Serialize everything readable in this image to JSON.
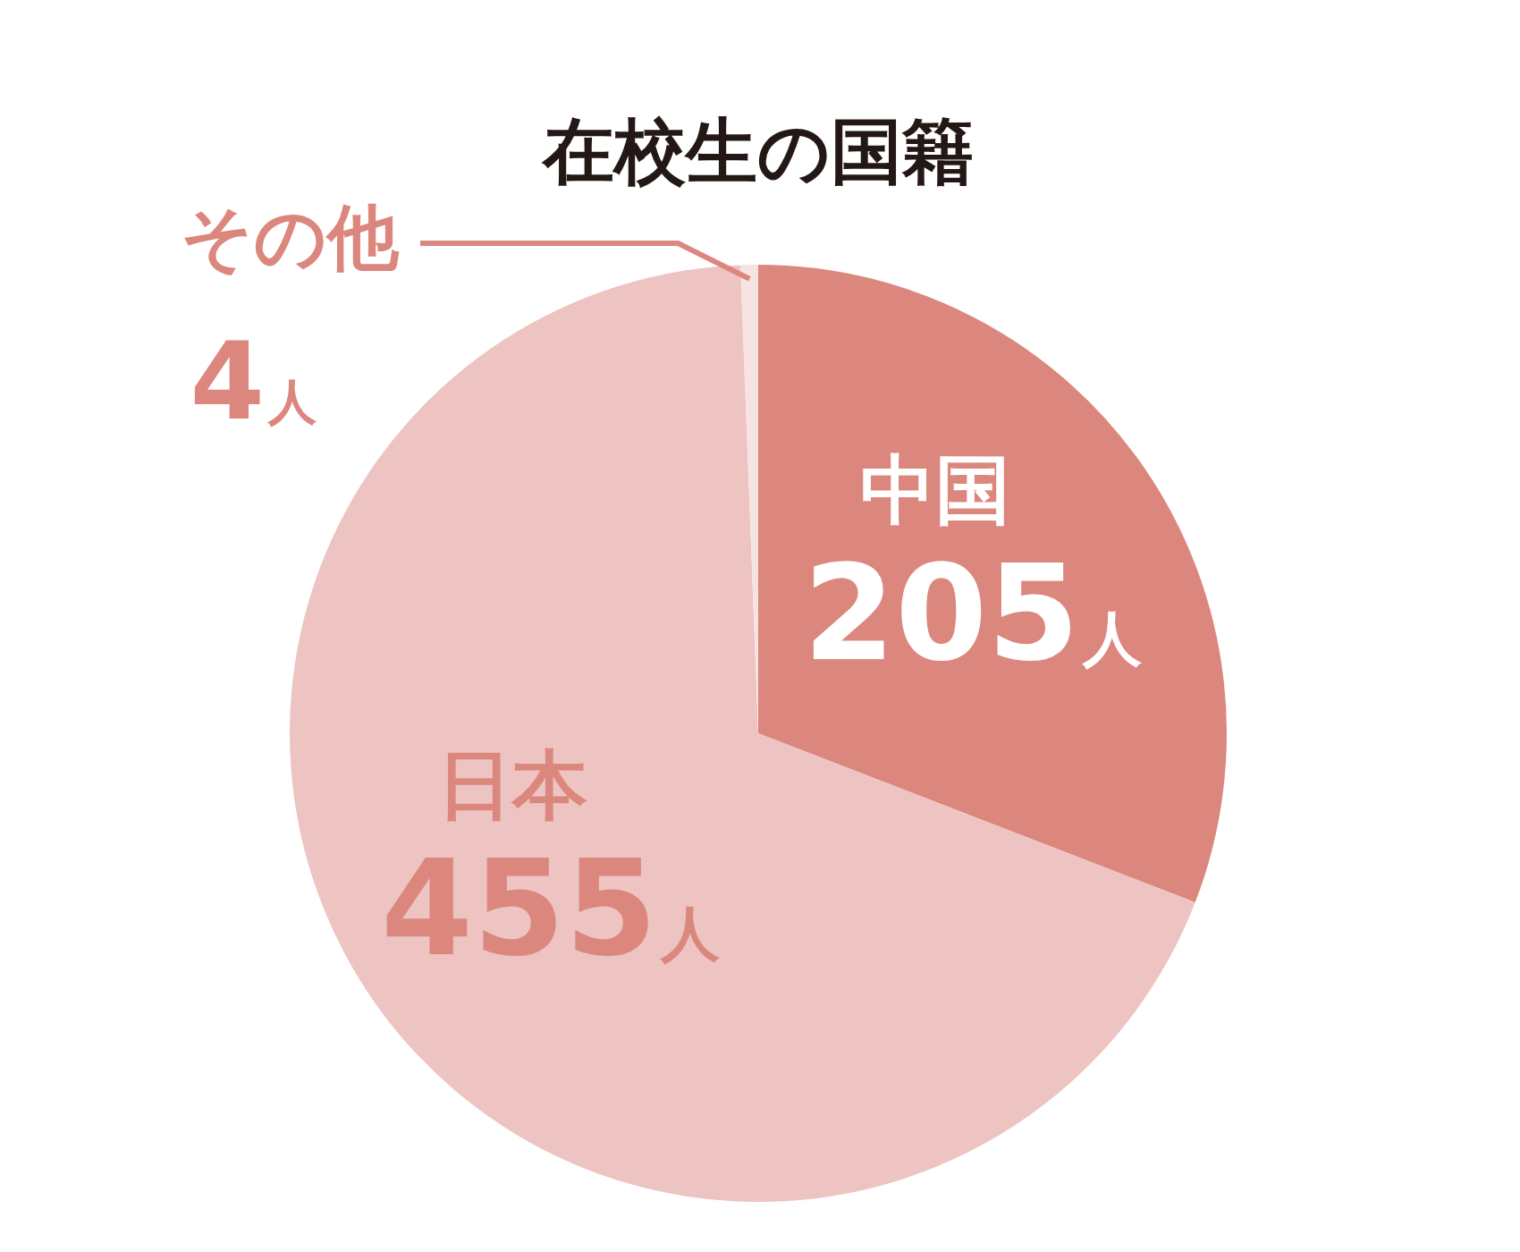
{
  "chart_data": {
    "type": "pie",
    "title": "在校生の国籍",
    "categories": [
      "中国",
      "日本",
      "その他"
    ],
    "values": [
      205,
      455,
      4
    ],
    "colors": [
      "#dc877e",
      "#edc4c1",
      "#f7e4e2"
    ],
    "value_labels": [
      "205人",
      "455人",
      "4人"
    ]
  }
}
